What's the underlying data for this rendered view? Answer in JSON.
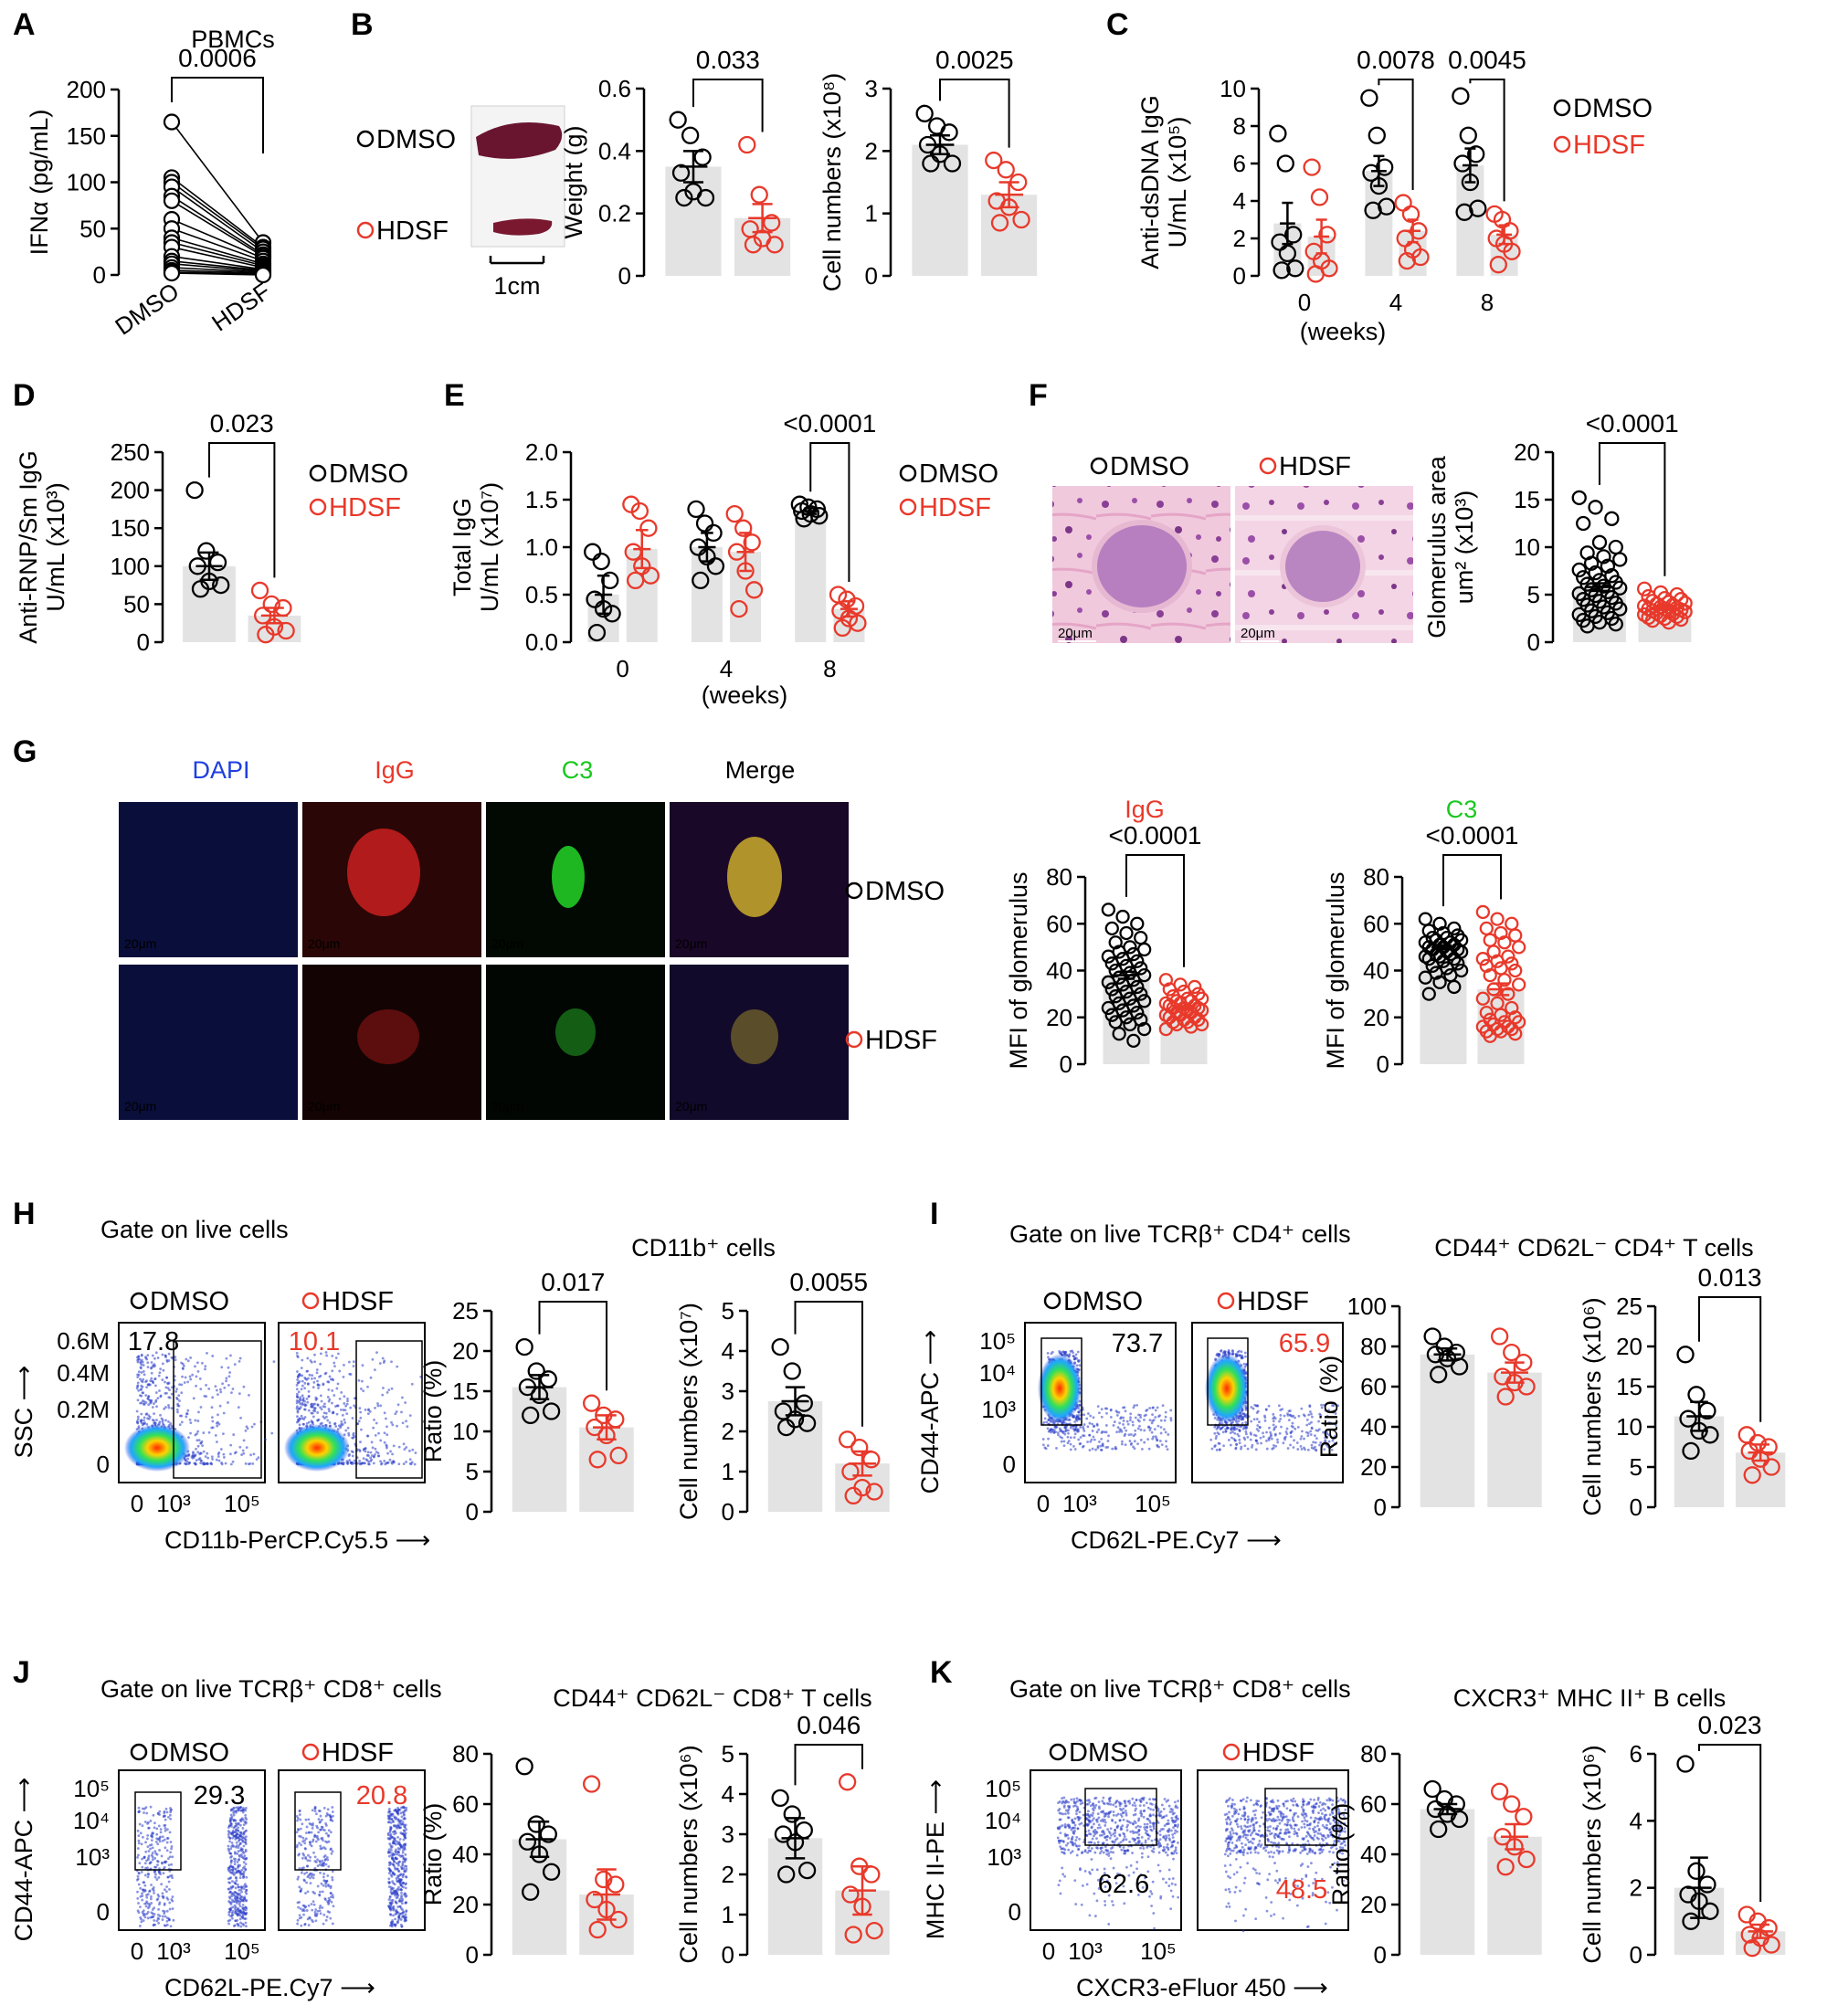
{
  "colors": {
    "dmso": "#000000",
    "hdsf": "#e8392b",
    "bar": "#e3e3e3",
    "dapi": "#1f3fe0",
    "igg": "#e8392b",
    "c3": "#19c81e"
  },
  "legend": {
    "dmso": "DMSO",
    "hdsf": "HDSF"
  },
  "panels": {
    "A": "A",
    "B": "B",
    "C": "C",
    "D": "D",
    "E": "E",
    "F": "F",
    "G": "G",
    "H": "H",
    "I": "I",
    "J": "J",
    "K": "K"
  },
  "text": {
    "a_title": "PBMCs",
    "b_scale": "1cm",
    "c_weeks": "(weeks)",
    "e_weeks": "(weeks)",
    "f_scale": "20μm",
    "g_ch": [
      "DAPI",
      "IgG",
      "C3",
      "Merge"
    ],
    "g_scale": "20μm",
    "g_t1": "IgG",
    "g_t2": "C3",
    "h_gate": "Gate on live cells",
    "h_pop": "CD11b⁺ cells",
    "h_x": "CD11b-PerCP.Cy5.5",
    "h_y": "SSC",
    "h_yticks": [
      "0.6M",
      "0.4M",
      "0.2M",
      "0"
    ],
    "h_xticks": [
      "0",
      "10³",
      "10⁵"
    ],
    "h_vals": [
      "17.8",
      "10.1"
    ],
    "i_gate": "Gate on live TCRβ⁺ CD4⁺ cells",
    "i_pop": "CD44⁺ CD62L⁻ CD4⁺ T cells",
    "i_x": "CD62L-PE.Cy7",
    "i_y": "CD44-APC",
    "i_yticks": [
      "10⁵",
      "10⁴",
      "10³",
      "0"
    ],
    "i_xticks": [
      "0",
      "10³",
      "10⁵"
    ],
    "i_vals": [
      "73.7",
      "65.9"
    ],
    "j_gate": "Gate on live TCRβ⁺ CD8⁺ cells",
    "j_pop": "CD44⁺ CD62L⁻ CD8⁺ T cells",
    "j_x": "CD62L-PE.Cy7",
    "j_y": "CD44-APC",
    "j_yticks": [
      "10⁵",
      "10⁴",
      "10³",
      "0"
    ],
    "j_xticks": [
      "0",
      "10³",
      "10⁵"
    ],
    "j_vals": [
      "29.3",
      "20.8"
    ],
    "k_gate": "Gate on live TCRβ⁺ CD8⁺ cells",
    "k_pop": "CXCR3⁺ MHC II⁺ B cells",
    "k_x": "CXCR3-eFluor 450",
    "k_y": "MHC II-PE",
    "k_yticks": [
      "10⁵",
      "10⁴",
      "10³",
      "0"
    ],
    "k_xticks": [
      "0",
      "10³",
      "10⁵"
    ],
    "k_vals": [
      "62.6",
      "48.5"
    ]
  },
  "chart_data": [
    {
      "id": "A",
      "type": "scatter",
      "paired": true,
      "title": "PBMCs",
      "ylabel": "IFNα (pg/mL)",
      "categories": [
        "DMSO",
        "HDSF"
      ],
      "ylim": [
        0,
        200
      ],
      "yticks": [
        0,
        50,
        100,
        150,
        200
      ],
      "p_values": [
        "0.0006"
      ],
      "series": [
        {
          "name": "DMSO",
          "values": [
            165,
            105,
            100,
            95,
            85,
            80,
            60,
            50,
            40,
            35,
            30,
            20,
            15,
            12,
            8,
            5,
            3,
            2
          ]
        },
        {
          "name": "HDSF",
          "values": [
            35,
            30,
            28,
            25,
            22,
            20,
            18,
            15,
            12,
            10,
            8,
            6,
            5,
            4,
            3,
            2,
            1,
            0
          ]
        }
      ]
    },
    {
      "id": "B1",
      "type": "bar",
      "ylabel": "Weight (g)",
      "categories": [
        "DMSO",
        "HDSF"
      ],
      "ylim": [
        0,
        0.6
      ],
      "yticks": [
        0,
        0.2,
        0.4,
        0.6
      ],
      "p_values": [
        "0.033"
      ],
      "values": [
        0.35,
        0.185
      ],
      "errors": [
        0.05,
        0.045
      ],
      "points": [
        [
          0.5,
          0.45,
          0.38,
          0.33,
          0.27,
          0.25,
          0.25
        ],
        [
          0.42,
          0.26,
          0.17,
          0.15,
          0.12,
          0.1,
          0.1
        ]
      ]
    },
    {
      "id": "B2",
      "type": "bar",
      "ylabel": "Cell numbers (x10⁸)",
      "categories": [
        "DMSO",
        "HDSF"
      ],
      "ylim": [
        0,
        3
      ],
      "yticks": [
        0,
        1,
        2,
        3
      ],
      "p_values": [
        "0.0025"
      ],
      "values": [
        2.1,
        1.3
      ],
      "errors": [
        0.15,
        0.2
      ],
      "points": [
        [
          2.6,
          2.4,
          2.3,
          2.1,
          1.95,
          1.8,
          1.8
        ],
        [
          1.85,
          1.7,
          1.5,
          1.2,
          1.1,
          0.9,
          0.85
        ]
      ]
    },
    {
      "id": "C",
      "type": "bar",
      "ylabel": "Anti-dsDNA IgG U/mL (x10⁵)",
      "xlabel": "(weeks)",
      "categories": [
        "0",
        "4",
        "8"
      ],
      "ylim": [
        0,
        10
      ],
      "yticks": [
        0,
        2,
        4,
        6,
        8,
        10
      ],
      "p_values": [
        "0.0078",
        "0.0045"
      ],
      "sig_groups": [
        1,
        2
      ],
      "series": [
        {
          "name": "DMSO",
          "values": [
            2.8,
            5.6,
            5.9
          ],
          "errors": [
            1.1,
            0.8,
            0.9
          ],
          "points": [
            [
              7.6,
              6.0,
              2.2,
              1.8,
              1.2,
              0.4,
              0.3
            ],
            [
              9.5,
              7.5,
              5.8,
              5.5,
              4.8,
              3.7,
              3.5
            ],
            [
              9.6,
              7.5,
              6.5,
              6.0,
              5.0,
              3.6,
              3.4
            ]
          ]
        },
        {
          "name": "HDSF",
          "values": [
            2.1,
            2.4,
            2.2
          ],
          "errors": [
            0.9,
            0.6,
            0.5
          ],
          "points": [
            [
              5.8,
              4.2,
              2.2,
              1.3,
              0.8,
              0.4,
              0.1
            ],
            [
              3.9,
              3.3,
              2.4,
              2.0,
              1.4,
              1.0,
              0.8
            ],
            [
              3.3,
              3.0,
              2.4,
              2.0,
              1.7,
              1.3,
              0.6
            ]
          ]
        }
      ]
    },
    {
      "id": "D",
      "type": "bar",
      "ylabel": "Anti-RNP/Sm IgG U/mL (x10³)",
      "categories": [
        "DMSO",
        "HDSF"
      ],
      "ylim": [
        0,
        250
      ],
      "yticks": [
        0,
        50,
        100,
        150,
        200,
        250
      ],
      "p_values": [
        "0.023"
      ],
      "values": [
        100,
        35
      ],
      "errors": [
        18,
        10
      ],
      "points": [
        [
          200,
          120,
          105,
          100,
          80,
          75,
          70
        ],
        [
          68,
          50,
          45,
          35,
          20,
          15,
          10
        ]
      ]
    },
    {
      "id": "E",
      "type": "bar",
      "ylabel": "Total IgG U/mL (x10⁷)",
      "xlabel": "(weeks)",
      "categories": [
        "0",
        "4",
        "8"
      ],
      "ylim": [
        0,
        2.0
      ],
      "yticks": [
        0,
        0.5,
        1.0,
        1.5,
        2.0
      ],
      "p_values": [
        "<0.0001"
      ],
      "sig_groups": [
        2
      ],
      "series": [
        {
          "name": "DMSO",
          "values": [
            0.5,
            1.0,
            1.38
          ],
          "errors": [
            0.2,
            0.15,
            0.03
          ],
          "points": [
            [
              0.95,
              0.85,
              0.65,
              0.45,
              0.35,
              0.3,
              0.1
            ],
            [
              1.4,
              1.25,
              1.15,
              1.0,
              0.9,
              0.8,
              0.65
            ],
            [
              1.45,
              1.42,
              1.4,
              1.38,
              1.35,
              1.33,
              1.3
            ]
          ]
        },
        {
          "name": "HDSF",
          "values": [
            0.98,
            0.95,
            0.35
          ],
          "errors": [
            0.2,
            0.2,
            0.08
          ],
          "points": [
            [
              1.45,
              1.38,
              1.2,
              0.95,
              0.8,
              0.7,
              0.65
            ],
            [
              1.35,
              1.2,
              1.05,
              0.95,
              0.75,
              0.55,
              0.35
            ],
            [
              0.5,
              0.45,
              0.38,
              0.33,
              0.25,
              0.2,
              0.15
            ]
          ]
        }
      ]
    },
    {
      "id": "F",
      "type": "bar",
      "ylabel": "Glomerulus area um² (x10³)",
      "categories": [
        "DMSO",
        "HDSF"
      ],
      "ylim": [
        0,
        20
      ],
      "yticks": [
        0,
        5,
        10,
        15,
        20
      ],
      "p_values": [
        "<0.0001"
      ],
      "values": [
        5.8,
        3.6
      ],
      "errors": [
        0.4,
        0.2
      ],
      "points": [
        [
          15.2,
          14.2,
          13.0,
          12.5,
          10.5,
          10.0,
          9.4,
          9.0,
          8.7,
          8.3,
          8.0,
          7.6,
          7.3,
          7.0,
          6.8,
          6.5,
          6.3,
          6.1,
          5.9,
          5.7,
          5.5,
          5.3,
          5.1,
          4.9,
          4.7,
          4.5,
          4.3,
          4.1,
          3.9,
          3.7,
          3.5,
          3.3,
          3.1,
          2.9,
          2.7,
          2.5,
          2.3,
          2.1,
          1.9,
          1.7
        ],
        [
          5.6,
          5.2,
          5.0,
          4.8,
          4.6,
          4.5,
          4.3,
          4.2,
          4.1,
          4.0,
          3.9,
          3.8,
          3.7,
          3.6,
          3.5,
          3.5,
          3.4,
          3.3,
          3.3,
          3.2,
          3.1,
          3.0,
          2.9,
          2.8,
          2.7,
          2.6,
          2.5,
          2.4,
          2.3,
          2.1
        ]
      ]
    },
    {
      "id": "G1",
      "type": "bar",
      "title": "IgG",
      "ylabel": "MFI of glomerulus",
      "categories": [
        "DMSO",
        "HDSF"
      ],
      "ylim": [
        0,
        80
      ],
      "yticks": [
        0,
        20,
        40,
        60,
        80
      ],
      "p_values": [
        "<0.0001"
      ],
      "values": [
        38,
        24
      ],
      "errors": [
        1.5,
        0.8
      ],
      "points": [
        [
          66,
          63,
          60,
          58,
          56,
          54,
          52,
          50,
          49,
          48,
          47,
          46,
          45,
          44,
          43,
          42,
          41,
          40,
          39,
          38,
          37,
          36,
          35,
          34,
          33,
          32,
          31,
          30,
          29,
          28,
          27,
          26,
          25,
          24,
          23,
          22,
          21,
          20,
          19,
          18,
          17,
          15,
          13,
          10
        ],
        [
          36,
          34,
          33,
          32,
          31,
          30,
          29,
          28,
          28,
          27,
          27,
          26,
          26,
          25,
          25,
          24,
          24,
          24,
          23,
          23,
          22,
          22,
          21,
          21,
          20,
          20,
          19,
          19,
          18,
          18,
          17,
          17,
          16,
          15
        ]
      ]
    },
    {
      "id": "G2",
      "type": "bar",
      "title": "C3",
      "ylabel": "MFI of glomerulus",
      "categories": [
        "DMSO",
        "HDSF"
      ],
      "ylim": [
        0,
        80
      ],
      "yticks": [
        0,
        20,
        40,
        60,
        80
      ],
      "p_values": [
        "<0.0001"
      ],
      "values": [
        50,
        32
      ],
      "errors": [
        0.8,
        2.5
      ],
      "points": [
        [
          62,
          60,
          58,
          57,
          56,
          55,
          54,
          54,
          53,
          53,
          52,
          52,
          51,
          51,
          50,
          50,
          49,
          49,
          48,
          48,
          47,
          47,
          46,
          46,
          45,
          45,
          44,
          43,
          42,
          41,
          40,
          39,
          38,
          37,
          35,
          33,
          30
        ],
        [
          65,
          62,
          60,
          58,
          56,
          55,
          53,
          52,
          50,
          48,
          46,
          45,
          44,
          43,
          42,
          41,
          40,
          38,
          36,
          34,
          32,
          30,
          28,
          26,
          24,
          22,
          21,
          20,
          19,
          18,
          18,
          17,
          16,
          16,
          15,
          15,
          14,
          14,
          13,
          12
        ]
      ]
    },
    {
      "id": "H1",
      "type": "bar",
      "title": "CD11b⁺ cells",
      "ylabel": "Ratio (%)",
      "categories": [
        "DMSO",
        "HDSF"
      ],
      "ylim": [
        0,
        25
      ],
      "yticks": [
        0,
        5,
        10,
        15,
        20,
        25
      ],
      "p_values": [
        "0.017"
      ],
      "values": [
        15.5,
        10.5
      ],
      "errors": [
        1.5,
        1.5
      ],
      "points": [
        [
          20.5,
          17.5,
          16.5,
          15.5,
          14.5,
          12.5,
          12.0
        ],
        [
          13.5,
          12.0,
          11.5,
          10.5,
          9.5,
          7.0,
          6.5
        ]
      ]
    },
    {
      "id": "H2",
      "type": "bar",
      "title": "CD11b⁺ cells",
      "ylabel": "Cell numbers (x10⁷)",
      "categories": [
        "DMSO",
        "HDSF"
      ],
      "ylim": [
        0,
        5
      ],
      "yticks": [
        0,
        1,
        2,
        3,
        4,
        5
      ],
      "p_values": [
        "0.0055"
      ],
      "values": [
        2.75,
        1.2
      ],
      "errors": [
        0.35,
        0.3
      ],
      "points": [
        [
          4.1,
          3.5,
          2.7,
          2.5,
          2.3,
          2.2,
          2.1
        ],
        [
          1.8,
          1.6,
          1.3,
          1.0,
          0.6,
          0.5,
          0.4
        ]
      ]
    },
    {
      "id": "I1",
      "type": "bar",
      "title": "CD44⁺ CD62L⁻ CD4⁺ T cells",
      "ylabel": "Ratio (%)",
      "categories": [
        "DMSO",
        "HDSF"
      ],
      "ylim": [
        0,
        100
      ],
      "yticks": [
        0,
        20,
        40,
        60,
        80,
        100
      ],
      "p_values": [],
      "values": [
        76,
        67
      ],
      "errors": [
        3,
        5
      ],
      "points": [
        [
          85,
          80,
          77,
          76,
          74,
          70,
          66
        ],
        [
          85,
          77,
          72,
          65,
          62,
          60,
          55
        ]
      ]
    },
    {
      "id": "I2",
      "type": "bar",
      "title": "CD44⁺ CD62L⁻ CD4⁺ T cells",
      "ylabel": "Cell numbers (x10⁶)",
      "categories": [
        "DMSO",
        "HDSF"
      ],
      "ylim": [
        0,
        25
      ],
      "yticks": [
        0,
        5,
        10,
        15,
        20,
        25
      ],
      "p_values": [
        "0.013"
      ],
      "values": [
        11.3,
        6.8
      ],
      "errors": [
        1.8,
        1.0
      ],
      "points": [
        [
          19,
          14,
          12,
          11,
          9.5,
          9,
          7
        ],
        [
          9,
          8,
          7.5,
          7,
          6,
          5,
          4
        ]
      ]
    },
    {
      "id": "J1",
      "type": "bar",
      "title": "CD44⁺ CD62L⁻ CD8⁺ T cells",
      "ylabel": "Ratio (%)",
      "categories": [
        "DMSO",
        "HDSF"
      ],
      "ylim": [
        0,
        80
      ],
      "yticks": [
        0,
        20,
        40,
        60,
        80
      ],
      "p_values": [],
      "values": [
        46,
        24
      ],
      "errors": [
        7,
        10
      ],
      "points": [
        [
          75,
          52,
          48,
          45,
          40,
          33,
          25
        ],
        [
          68,
          30,
          28,
          22,
          18,
          14,
          10
        ]
      ]
    },
    {
      "id": "J2",
      "type": "bar",
      "title": "CD44⁺ CD62L⁻ CD8⁺ T cells",
      "ylabel": "Cell numbers (x10⁶)",
      "categories": [
        "DMSO",
        "HDSF"
      ],
      "ylim": [
        0,
        5
      ],
      "yticks": [
        0,
        1,
        2,
        3,
        4,
        5
      ],
      "p_values": [
        "0.046"
      ],
      "values": [
        2.9,
        1.6
      ],
      "errors": [
        0.5,
        0.6
      ],
      "points": [
        [
          3.9,
          3.5,
          3.1,
          3.0,
          2.8,
          2.1,
          2.0
        ],
        [
          4.3,
          2.2,
          2.0,
          1.5,
          1.2,
          0.6,
          0.5
        ]
      ]
    },
    {
      "id": "K1",
      "type": "bar",
      "title": "CXCR3⁺ MHC II⁺ B cells",
      "ylabel": "Ratio (%)",
      "categories": [
        "DMSO",
        "HDSF"
      ],
      "ylim": [
        0,
        80
      ],
      "yticks": [
        0,
        20,
        40,
        60,
        80
      ],
      "p_values": [],
      "values": [
        58,
        47
      ],
      "errors": [
        2,
        5
      ],
      "points": [
        [
          66,
          62,
          60,
          58,
          56,
          54,
          50
        ],
        [
          65,
          60,
          55,
          47,
          43,
          38,
          35
        ]
      ]
    },
    {
      "id": "K2",
      "type": "bar",
      "title": "CXCR3⁺ MHC II⁺ B cells",
      "ylabel": "Cell numbers (x10⁶)",
      "categories": [
        "DMSO",
        "HDSF"
      ],
      "ylim": [
        0,
        6
      ],
      "yticks": [
        0,
        2,
        4,
        6
      ],
      "p_values": [
        "0.023"
      ],
      "values": [
        2.0,
        0.7
      ],
      "errors": [
        0.9,
        0.2
      ],
      "points": [
        [
          5.7,
          2.5,
          2.1,
          1.8,
          1.6,
          1.3,
          1.0
        ],
        [
          1.2,
          1.0,
          0.8,
          0.6,
          0.5,
          0.3,
          0.2
        ]
      ]
    }
  ]
}
